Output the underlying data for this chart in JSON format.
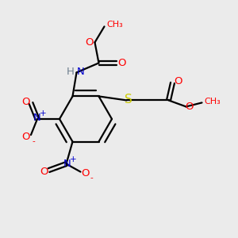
{
  "bg_color": "#ebebeb",
  "atom_colors": {
    "C": "#000000",
    "H": "#708090",
    "N": "#0000cd",
    "O": "#ff0000",
    "S": "#cccc00"
  },
  "bond_color": "#000000",
  "figsize": [
    3.0,
    3.0
  ],
  "dpi": 100
}
